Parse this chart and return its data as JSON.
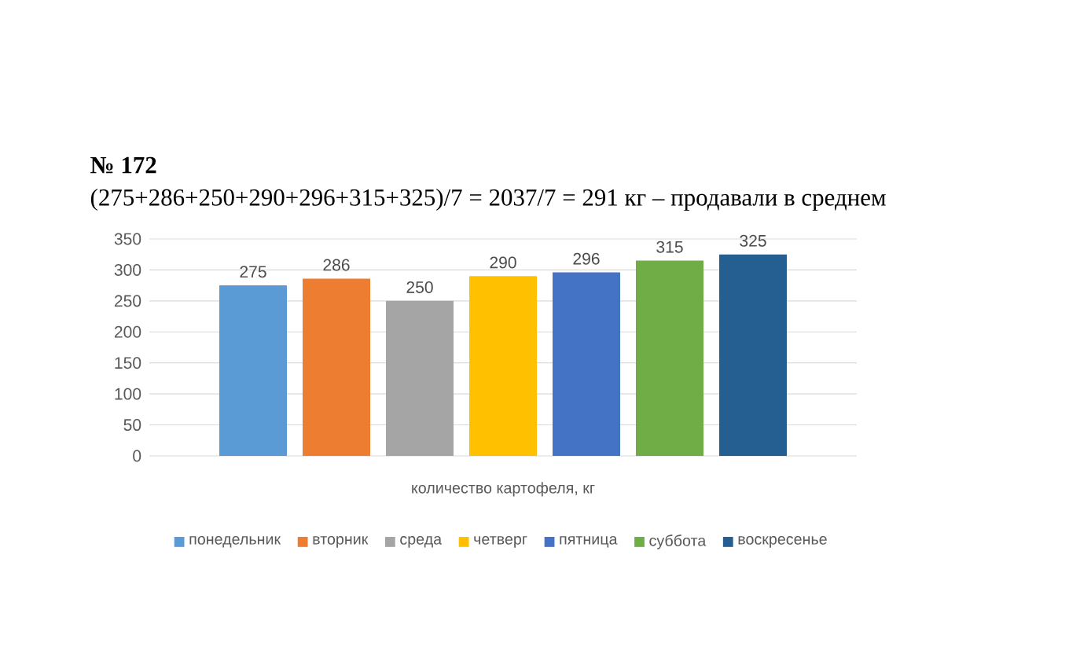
{
  "chart_data": {
    "type": "bar",
    "annotations": [
      "№ 172",
      "(275+286+250+290+296+315+325)/7 = 2037/7 = 291 кг – продавали в среднем"
    ],
    "xlabel": "количество картофеля, кг",
    "categories": [
      null
    ],
    "series": [
      {
        "name": "понедельник",
        "color": "#5b9bd5",
        "values": [
          275
        ]
      },
      {
        "name": "вторник",
        "color": "#ed7d31",
        "values": [
          286
        ]
      },
      {
        "name": "среда",
        "color": "#a5a5a5",
        "values": [
          250
        ]
      },
      {
        "name": "четверг",
        "color": "#ffc000",
        "values": [
          290
        ]
      },
      {
        "name": "пятница",
        "color": "#4472c4",
        "values": [
          296
        ]
      },
      {
        "name": "суббота",
        "color": "#70ad47",
        "values": [
          315
        ]
      },
      {
        "name": "воскресенье",
        "color": "#255e91",
        "values": [
          325
        ]
      }
    ],
    "ylim": [
      0,
      350
    ],
    "yticks": [
      0,
      50,
      100,
      150,
      200,
      250,
      300,
      350
    ],
    "grid": "y",
    "legend": "bottom",
    "data_labels": true
  }
}
